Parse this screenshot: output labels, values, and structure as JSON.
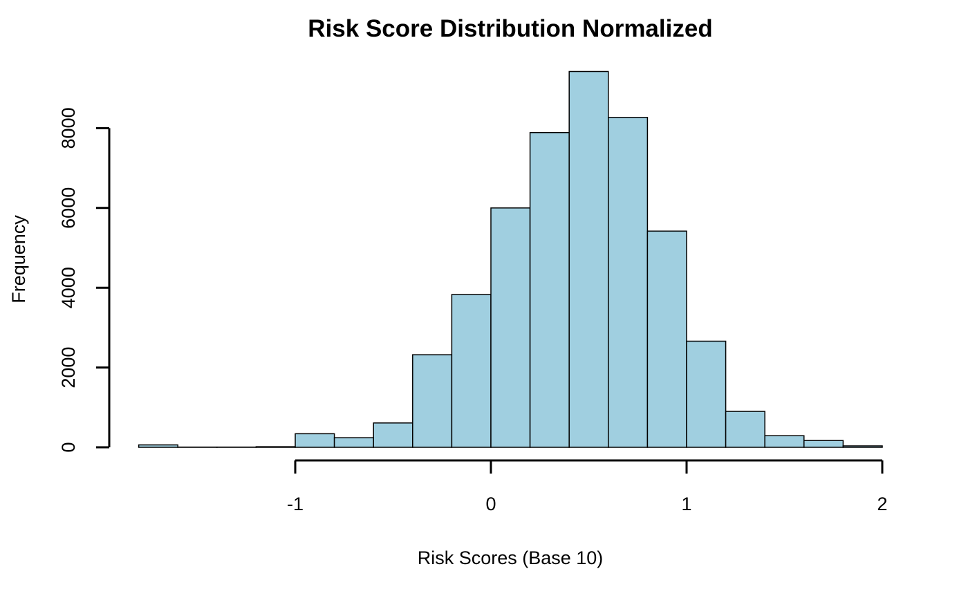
{
  "chart_data": {
    "type": "bar",
    "title": "Risk Score Distribution Normalized",
    "xlabel": "Risk Scores (Base 10)",
    "ylabel": "Frequency",
    "bin_edges": [
      -1.8,
      -1.6,
      -1.4,
      -1.2,
      -1.0,
      -0.8,
      -0.6,
      -0.4,
      -0.2,
      0.0,
      0.2,
      0.4,
      0.6,
      0.8,
      1.0,
      1.2,
      1.4,
      1.6,
      1.8,
      2.0
    ],
    "values": [
      60,
      5,
      5,
      15,
      340,
      240,
      610,
      2320,
      3830,
      6000,
      7890,
      9420,
      8270,
      5420,
      2660,
      900,
      290,
      170,
      35
    ],
    "x_ticks": [
      -1,
      0,
      1,
      2
    ],
    "x_tick_labels": [
      "-1",
      "0",
      "1",
      "2"
    ],
    "y_ticks": [
      0,
      2000,
      4000,
      6000,
      8000
    ],
    "y_tick_labels": [
      "0",
      "2000",
      "4000",
      "6000",
      "8000"
    ],
    "xlim": [
      -1.8,
      2.0
    ],
    "ylim": [
      0,
      9500
    ],
    "grid": false,
    "bar_color": "#a0cfe0"
  }
}
